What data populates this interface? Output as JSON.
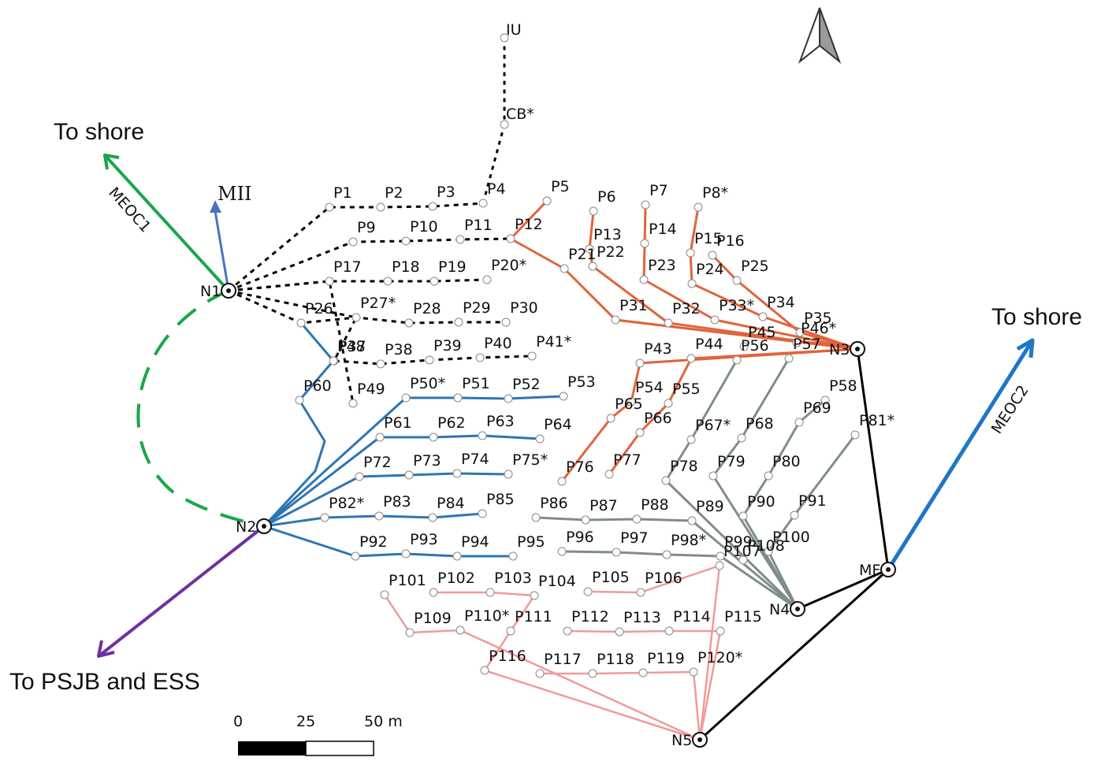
{
  "labels": {
    "to_shore_left": "To shore",
    "to_shore_right": "To shore",
    "to_psjb": "To PSJB and ESS",
    "meoc1": "MEOC1",
    "meoc2": "MEOC2",
    "mii": "MII",
    "iu": "IU",
    "cb": "CB*",
    "mf": "MF",
    "scale": {
      "s0": "0",
      "s25": "25",
      "s50": "50 m"
    }
  },
  "hubs": [
    "N1",
    "N2",
    "N3",
    "N4",
    "N5"
  ],
  "network": {
    "black_dotted": {
      "color": "#000000",
      "hub": "N1",
      "nodes": [
        "P1",
        "P2",
        "P3",
        "P4",
        "P9",
        "P10",
        "P11",
        "P17",
        "P18",
        "P19",
        "P20*",
        "P26",
        "P27*",
        "P28",
        "P29",
        "P30",
        "P37",
        "P38",
        "P39",
        "P40",
        "P41*",
        "P49"
      ]
    },
    "orange": {
      "color": "#e0643a",
      "hub": "N3",
      "nodes": [
        "P5",
        "P6",
        "P7",
        "P8*",
        "P12",
        "P13",
        "P14",
        "P15",
        "P16",
        "P21",
        "P22",
        "P23",
        "P24",
        "P25",
        "P31",
        "P32",
        "P33*",
        "P34",
        "P35",
        "P43",
        "P44",
        "P45",
        "P46*",
        "P54",
        "P55",
        "P65",
        "P66",
        "P76",
        "P77"
      ]
    },
    "blue": {
      "color": "#2e75b6",
      "hub": "N2",
      "nodes": [
        "P48",
        "P50*",
        "P51",
        "P52",
        "P53",
        "P60",
        "P61",
        "P62",
        "P63",
        "P64",
        "P72",
        "P73",
        "P74",
        "P75*",
        "P82*",
        "P83",
        "P84",
        "P85",
        "P92",
        "P93",
        "P94",
        "P95"
      ]
    },
    "grey": {
      "color": "#7f8c8d",
      "hub": "N4",
      "nodes": [
        "P56",
        "P57",
        "P58",
        "P67*",
        "P68",
        "P69",
        "P78",
        "P79",
        "P80",
        "P81*",
        "P86",
        "P87",
        "P88",
        "P89",
        "P90",
        "P91",
        "P96",
        "P97",
        "P98*",
        "P99",
        "P100",
        "P107",
        "P108"
      ]
    },
    "pink": {
      "color": "#f19a9a",
      "hub": "N5",
      "nodes": [
        "P101",
        "P102",
        "P103",
        "P104",
        "P105",
        "P106",
        "P109",
        "P110*",
        "P111",
        "P112",
        "P113",
        "P114",
        "P115",
        "P116",
        "P117",
        "P118",
        "P119",
        "P120*"
      ]
    }
  },
  "colors": {
    "meoc1": "#1aa64a",
    "meoc2": "#1f77c4",
    "mii": "#4a72c4",
    "psjb": "#7030a0",
    "backbone": "#000000"
  }
}
